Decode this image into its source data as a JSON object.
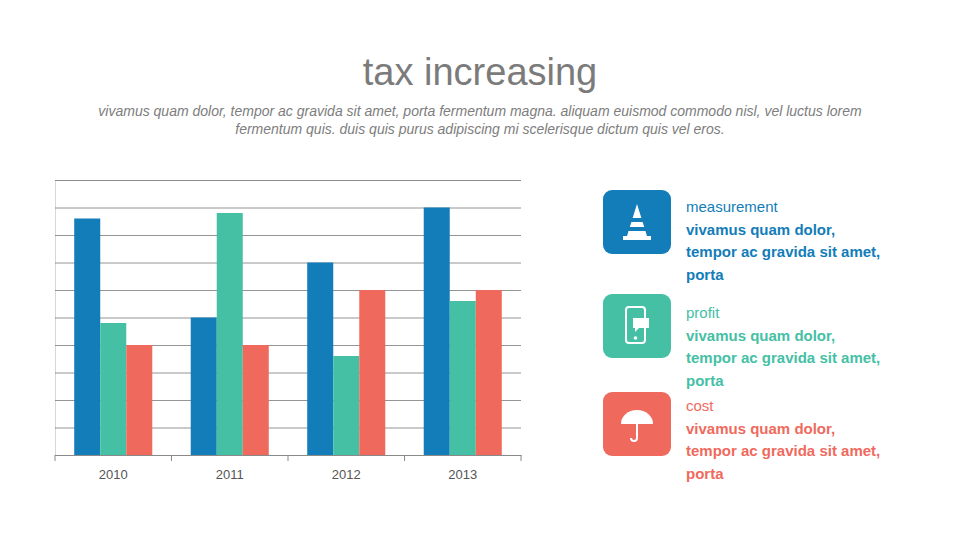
{
  "chart_data": {
    "type": "bar",
    "title": "tax increasing",
    "subtitle": "vivamus quam dolor, tempor ac gravida sit amet, porta fermentum magna. aliquam euismod commodo nisl, vel luctus lorem\nfermentum quis. duis quis purus adipiscing mi scelerisque dictum quis vel eros.",
    "categories": [
      "2010",
      "2011",
      "2012",
      "2013"
    ],
    "series": [
      {
        "name": "measurement",
        "color": "#127db8",
        "values": [
          8.6,
          5,
          7,
          9
        ]
      },
      {
        "name": "profit",
        "color": "#45c0a5",
        "values": [
          4.8,
          8.8,
          3.6,
          5.6
        ]
      },
      {
        "name": "cost",
        "color": "#ef6a5d",
        "values": [
          4,
          4,
          6,
          6
        ]
      }
    ],
    "ylim": [
      0,
      10
    ],
    "yticks": [
      0,
      1,
      2,
      3,
      4,
      5,
      6,
      7,
      8,
      9,
      10
    ],
    "grid": true,
    "tick_labels": "x",
    "legend": "right",
    "annotations": [
      "vivamus quam dolor,\ntempor ac gravida sit amet,\nporta",
      "vivamus quam dolor,\ntempor ac gravida sit amet,\nporta",
      "vivamus quam dolor,\ntempor ac gravida sit amet,\nporta"
    ]
  }
}
